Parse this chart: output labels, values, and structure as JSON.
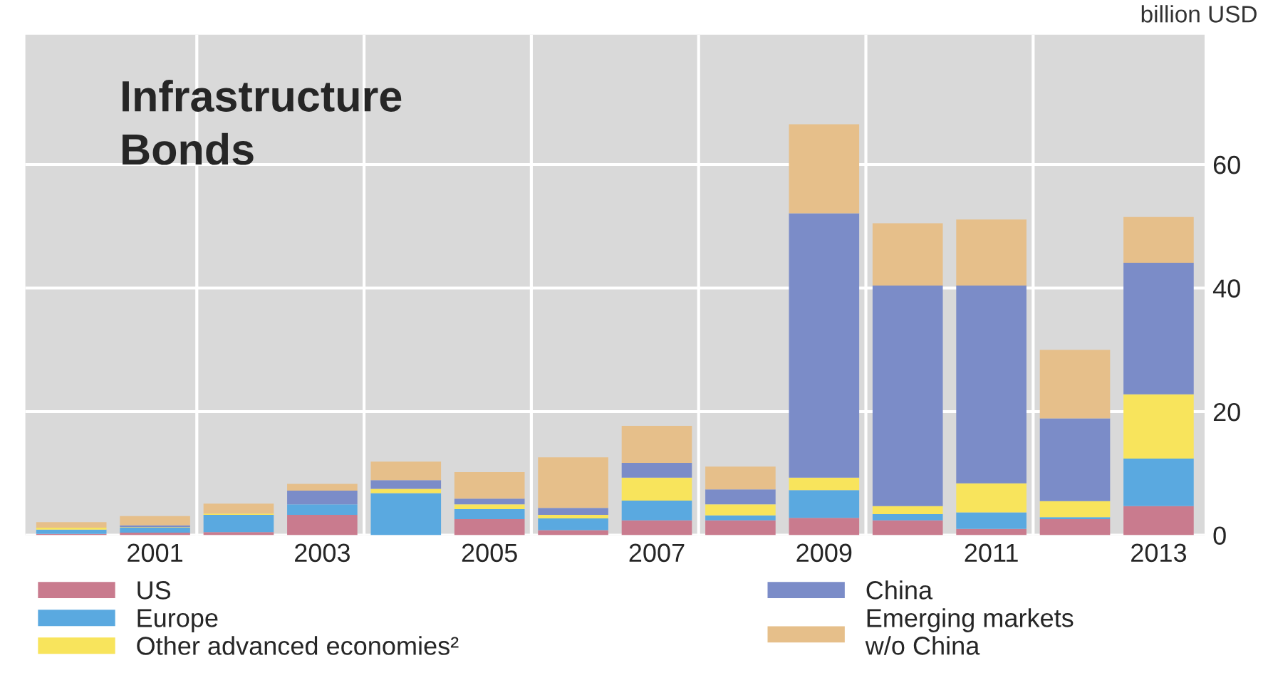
{
  "chart_data": {
    "type": "bar",
    "stacked": true,
    "title": "Infrastructure\nBonds",
    "ylabel": "billion USD",
    "categories": [
      null,
      "2001",
      null,
      "2003",
      null,
      "2005",
      null,
      "2007",
      null,
      "2009",
      null,
      "2011",
      null,
      "2013"
    ],
    "series": [
      {
        "name": "US",
        "color": "#c97b8e",
        "values": [
          0.2,
          0.4,
          0.5,
          3.3,
          0,
          2.6,
          0.8,
          2.4,
          2.4,
          2.8,
          2.4,
          1.0,
          2.6,
          4.7
        ]
      },
      {
        "name": "Europe",
        "color": "#5aa9e0",
        "values": [
          0.7,
          0.8,
          2.8,
          1.7,
          6.8,
          1.6,
          1.9,
          3.2,
          0.8,
          4.5,
          1.0,
          2.7,
          0.3,
          7.7
        ]
      },
      {
        "name": "Other advanced economies²",
        "color": "#f8e45c",
        "values": [
          0.3,
          0.1,
          0.2,
          0,
          0.7,
          0.8,
          0.6,
          3.7,
          1.8,
          2.0,
          1.3,
          4.7,
          2.6,
          10.4
        ]
      },
      {
        "name": "China",
        "color": "#7b8cc8",
        "values": [
          0,
          0.3,
          0,
          2.2,
          1.4,
          0.9,
          1.1,
          2.4,
          2.4,
          42.8,
          35.7,
          32.0,
          13.4,
          21.3
        ]
      },
      {
        "name": "Emerging markets\nw/o China",
        "color": "#e6bf8a",
        "values": [
          0.9,
          1.5,
          1.6,
          1.1,
          3.0,
          4.3,
          8.2,
          6.0,
          3.7,
          14.4,
          10.1,
          10.7,
          11.1,
          7.4
        ]
      }
    ],
    "ylim": [
      0,
      81
    ],
    "yticks": [
      0,
      20,
      40,
      60
    ],
    "grid": true,
    "legend": "bottom"
  }
}
